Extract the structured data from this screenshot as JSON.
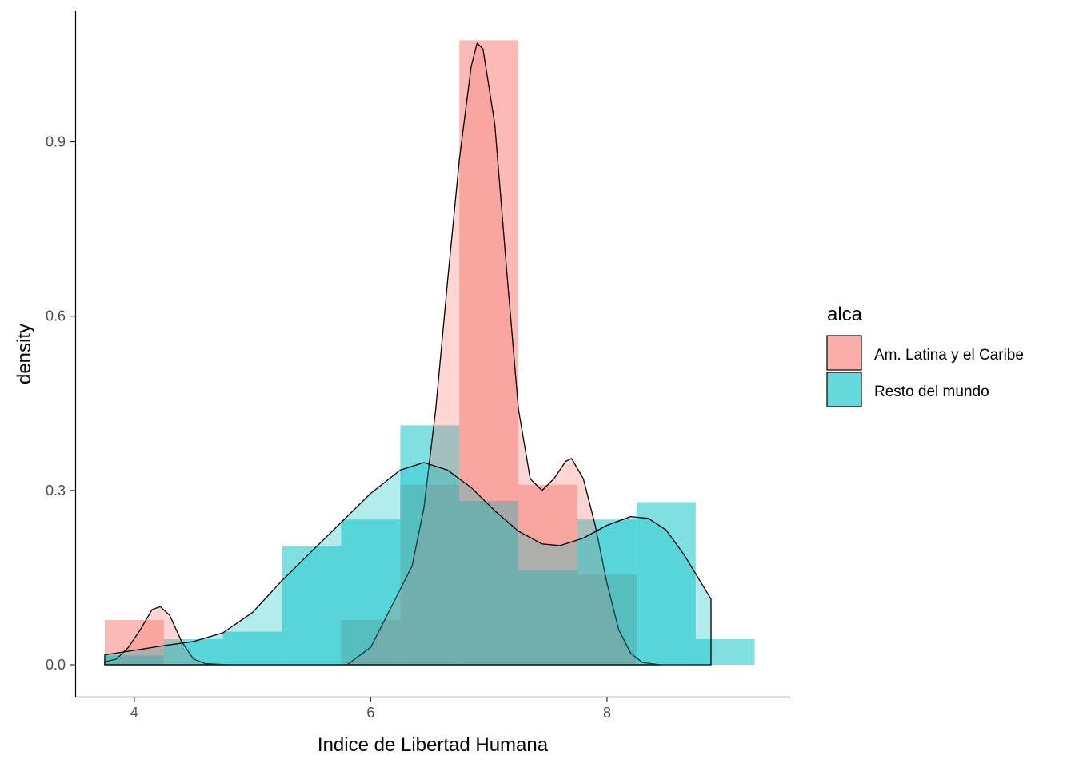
{
  "chart_data": {
    "type": "area",
    "title": "",
    "xlabel": "Indice de Libertad Humana",
    "ylabel": "density",
    "xlim": [
      3.5,
      9.55
    ],
    "ylim": [
      -0.055,
      1.125
    ],
    "x_ticks": [
      4,
      6,
      8
    ],
    "x_tick_labels": [
      "4",
      "6",
      "8"
    ],
    "y_ticks": [
      0.0,
      0.3,
      0.6,
      0.9
    ],
    "y_tick_labels": [
      "0.0",
      "0.3",
      "0.6",
      "0.9"
    ],
    "grid": false,
    "legend": {
      "title": "alca",
      "position": "right",
      "entries": [
        "Am. Latina y el Caribe",
        "Resto del mundo"
      ]
    },
    "series": [
      {
        "name": "Am. Latina y el Caribe",
        "color": "#F8766D",
        "histogram": [
          {
            "x0": 3.75,
            "x1": 4.25,
            "density": 0.077
          },
          {
            "x0": 4.25,
            "x1": 5.75,
            "density": 0.0
          },
          {
            "x0": 5.75,
            "x1": 6.25,
            "density": 0.077
          },
          {
            "x0": 6.25,
            "x1": 6.75,
            "density": 0.31
          },
          {
            "x0": 6.75,
            "x1": 7.25,
            "density": 1.075
          },
          {
            "x0": 7.25,
            "x1": 7.75,
            "density": 0.31
          },
          {
            "x0": 7.75,
            "x1": 8.25,
            "density": 0.155
          }
        ],
        "density_curve": [
          [
            3.75,
            0.005
          ],
          [
            3.85,
            0.01
          ],
          [
            3.95,
            0.03
          ],
          [
            4.05,
            0.06
          ],
          [
            4.15,
            0.095
          ],
          [
            4.22,
            0.1
          ],
          [
            4.3,
            0.085
          ],
          [
            4.4,
            0.04
          ],
          [
            4.5,
            0.01
          ],
          [
            4.6,
            0.002
          ],
          [
            4.8,
            0.0
          ],
          [
            5.8,
            0.0
          ],
          [
            6.0,
            0.03
          ],
          [
            6.15,
            0.09
          ],
          [
            6.25,
            0.13
          ],
          [
            6.35,
            0.17
          ],
          [
            6.45,
            0.27
          ],
          [
            6.55,
            0.44
          ],
          [
            6.65,
            0.66
          ],
          [
            6.75,
            0.87
          ],
          [
            6.85,
            1.03
          ],
          [
            6.9,
            1.07
          ],
          [
            6.95,
            1.06
          ],
          [
            7.05,
            0.93
          ],
          [
            7.15,
            0.68
          ],
          [
            7.25,
            0.44
          ],
          [
            7.35,
            0.32
          ],
          [
            7.45,
            0.3
          ],
          [
            7.55,
            0.32
          ],
          [
            7.65,
            0.35
          ],
          [
            7.7,
            0.355
          ],
          [
            7.8,
            0.32
          ],
          [
            7.9,
            0.24
          ],
          [
            8.0,
            0.14
          ],
          [
            8.1,
            0.06
          ],
          [
            8.2,
            0.02
          ],
          [
            8.3,
            0.004
          ],
          [
            8.45,
            0.0
          ]
        ]
      },
      {
        "name": "Resto del mundo",
        "color": "#00BFC4",
        "histogram": [
          {
            "x0": 3.75,
            "x1": 4.25,
            "density": 0.016
          },
          {
            "x0": 4.25,
            "x1": 4.75,
            "density": 0.044
          },
          {
            "x0": 4.75,
            "x1": 5.25,
            "density": 0.057
          },
          {
            "x0": 5.25,
            "x1": 5.75,
            "density": 0.205
          },
          {
            "x0": 5.75,
            "x1": 6.25,
            "density": 0.25
          },
          {
            "x0": 6.25,
            "x1": 6.75,
            "density": 0.412
          },
          {
            "x0": 6.75,
            "x1": 7.25,
            "density": 0.282
          },
          {
            "x0": 7.25,
            "x1": 7.75,
            "density": 0.162
          },
          {
            "x0": 7.75,
            "x1": 8.25,
            "density": 0.25
          },
          {
            "x0": 8.25,
            "x1": 8.75,
            "density": 0.28
          },
          {
            "x0": 8.75,
            "x1": 9.25,
            "density": 0.044
          }
        ],
        "density_curve": [
          [
            3.75,
            0.017
          ],
          [
            4.0,
            0.025
          ],
          [
            4.25,
            0.033
          ],
          [
            4.5,
            0.04
          ],
          [
            4.75,
            0.055
          ],
          [
            5.0,
            0.09
          ],
          [
            5.25,
            0.145
          ],
          [
            5.5,
            0.195
          ],
          [
            5.75,
            0.245
          ],
          [
            6.0,
            0.295
          ],
          [
            6.25,
            0.335
          ],
          [
            6.45,
            0.348
          ],
          [
            6.65,
            0.335
          ],
          [
            6.85,
            0.305
          ],
          [
            7.05,
            0.265
          ],
          [
            7.25,
            0.23
          ],
          [
            7.45,
            0.208
          ],
          [
            7.6,
            0.205
          ],
          [
            7.8,
            0.218
          ],
          [
            8.0,
            0.24
          ],
          [
            8.2,
            0.255
          ],
          [
            8.35,
            0.252
          ],
          [
            8.5,
            0.232
          ],
          [
            8.65,
            0.19
          ],
          [
            8.8,
            0.14
          ],
          [
            8.88,
            0.113
          ]
        ]
      }
    ]
  }
}
